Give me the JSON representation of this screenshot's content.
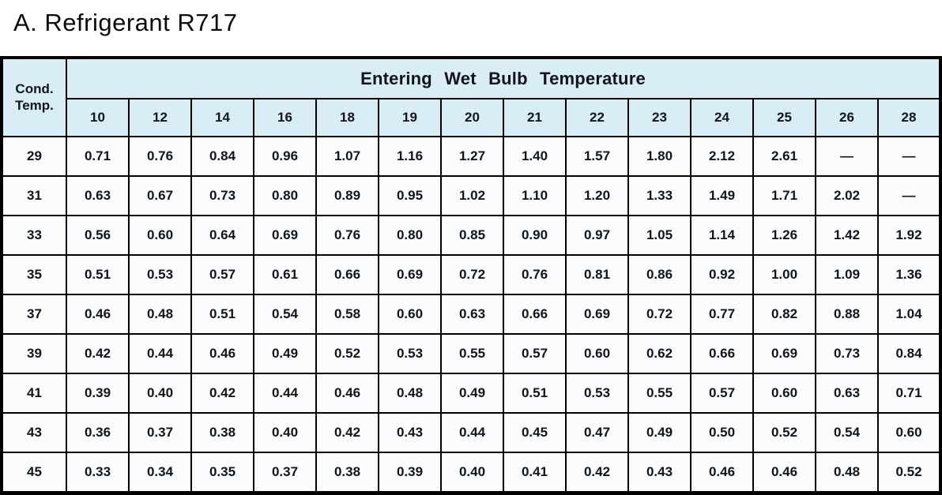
{
  "page_title": "A. Refrigerant R717",
  "table": {
    "corner_header": {
      "line1": "Cond.",
      "line2": "Temp."
    },
    "group_header": "Entering  Wet  Bulb  Temperature",
    "columns": [
      "10",
      "12",
      "14",
      "16",
      "18",
      "19",
      "20",
      "21",
      "22",
      "23",
      "24",
      "25",
      "26",
      "28"
    ],
    "rows": [
      {
        "cond_temp": "29",
        "values": [
          "0.71",
          "0.76",
          "0.84",
          "0.96",
          "1.07",
          "1.16",
          "1.27",
          "1.40",
          "1.57",
          "1.80",
          "2.12",
          "2.61",
          "—",
          "—"
        ]
      },
      {
        "cond_temp": "31",
        "values": [
          "0.63",
          "0.67",
          "0.73",
          "0.80",
          "0.89",
          "0.95",
          "1.02",
          "1.10",
          "1.20",
          "1.33",
          "1.49",
          "1.71",
          "2.02",
          "—"
        ]
      },
      {
        "cond_temp": "33",
        "values": [
          "0.56",
          "0.60",
          "0.64",
          "0.69",
          "0.76",
          "0.80",
          "0.85",
          "0.90",
          "0.97",
          "1.05",
          "1.14",
          "1.26",
          "1.42",
          "1.92"
        ]
      },
      {
        "cond_temp": "35",
        "values": [
          "0.51",
          "0.53",
          "0.57",
          "0.61",
          "0.66",
          "0.69",
          "0.72",
          "0.76",
          "0.81",
          "0.86",
          "0.92",
          "1.00",
          "1.09",
          "1.36"
        ]
      },
      {
        "cond_temp": "37",
        "values": [
          "0.46",
          "0.48",
          "0.51",
          "0.54",
          "0.58",
          "0.60",
          "0.63",
          "0.66",
          "0.69",
          "0.72",
          "0.77",
          "0.82",
          "0.88",
          "1.04"
        ]
      },
      {
        "cond_temp": "39",
        "values": [
          "0.42",
          "0.44",
          "0.46",
          "0.49",
          "0.52",
          "0.53",
          "0.55",
          "0.57",
          "0.60",
          "0.62",
          "0.66",
          "0.69",
          "0.73",
          "0.84"
        ]
      },
      {
        "cond_temp": "41",
        "values": [
          "0.39",
          "0.40",
          "0.42",
          "0.44",
          "0.46",
          "0.48",
          "0.49",
          "0.51",
          "0.53",
          "0.55",
          "0.57",
          "0.60",
          "0.63",
          "0.71"
        ]
      },
      {
        "cond_temp": "43",
        "values": [
          "0.36",
          "0.37",
          "0.38",
          "0.40",
          "0.42",
          "0.43",
          "0.44",
          "0.45",
          "0.47",
          "0.49",
          "0.50",
          "0.52",
          "0.54",
          "0.60"
        ]
      },
      {
        "cond_temp": "45",
        "values": [
          "0.33",
          "0.34",
          "0.35",
          "0.37",
          "0.38",
          "0.39",
          "0.40",
          "0.41",
          "0.42",
          "0.43",
          "0.46",
          "0.46",
          "0.48",
          "0.52"
        ]
      }
    ]
  },
  "colors": {
    "header_background": "#d9edf6",
    "cell_background": "#fafcfe",
    "border": "#000000",
    "text": "#111418",
    "page_background": "#ffffff"
  }
}
